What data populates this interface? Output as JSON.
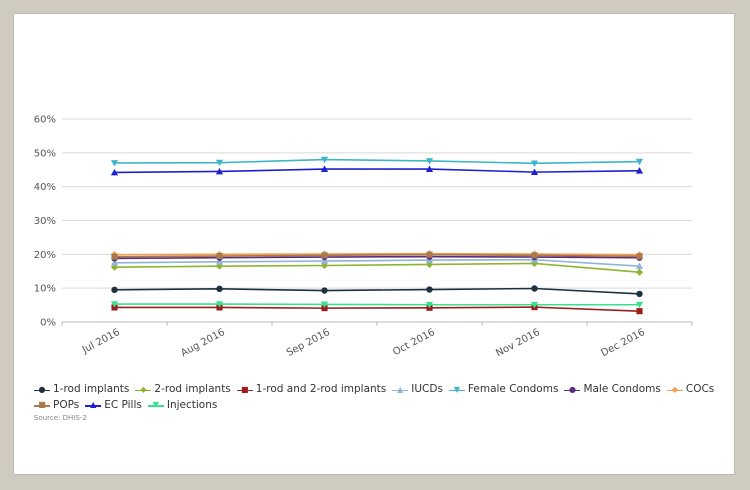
{
  "chart_data": {
    "type": "line",
    "categories": [
      "Jul 2016",
      "Aug 2016",
      "Sep 2016",
      "Oct 2016",
      "Nov 2016",
      "Dec 2016"
    ],
    "yticks": [
      "0%",
      "10%",
      "20%",
      "30%",
      "40%",
      "50%",
      "60%"
    ],
    "ylim": [
      0,
      60
    ],
    "grid": true,
    "legend_position": "bottom",
    "series": [
      {
        "name": "1-rod implants",
        "color": "#1f3040",
        "marker": "circle",
        "values": [
          9.5,
          9.8,
          9.3,
          9.6,
          9.9,
          8.3
        ]
      },
      {
        "name": "2-rod implants",
        "color": "#8fb52e",
        "marker": "diamond",
        "values": [
          16.2,
          16.5,
          16.7,
          17.0,
          17.3,
          14.7
        ]
      },
      {
        "name": "1-rod and 2-rod implants",
        "color": "#9b1c1c",
        "marker": "square",
        "values": [
          4.3,
          4.3,
          4.1,
          4.2,
          4.4,
          3.2
        ]
      },
      {
        "name": "IUCDs",
        "color": "#8fb3d9",
        "marker": "triangle-up",
        "values": [
          17.5,
          17.8,
          18.0,
          18.3,
          18.4,
          16.5
        ]
      },
      {
        "name": "Female Condoms",
        "color": "#3fb6c8",
        "marker": "triangle-down",
        "values": [
          47.0,
          47.1,
          48.0,
          47.6,
          46.9,
          47.4
        ]
      },
      {
        "name": "Male Condoms",
        "color": "#5b2d7e",
        "marker": "circle",
        "values": [
          18.8,
          19.0,
          19.2,
          19.3,
          19.2,
          19.0
        ]
      },
      {
        "name": "COCs",
        "color": "#f39c4a",
        "marker": "diamond",
        "values": [
          19.9,
          20.0,
          20.1,
          20.2,
          20.1,
          19.9
        ]
      },
      {
        "name": "POPs",
        "color": "#a8784e",
        "marker": "square",
        "values": [
          19.3,
          19.5,
          19.7,
          19.9,
          19.7,
          19.4
        ]
      },
      {
        "name": "EC Pills",
        "color": "#2020d0",
        "marker": "triangle-up",
        "values": [
          44.2,
          44.5,
          45.2,
          45.2,
          44.3,
          44.7
        ]
      },
      {
        "name": "Injections",
        "color": "#3be08f",
        "marker": "triangle-down",
        "values": [
          5.3,
          5.3,
          5.2,
          5.1,
          5.1,
          5.1
        ]
      }
    ]
  },
  "source": "Source: DHIS-2"
}
